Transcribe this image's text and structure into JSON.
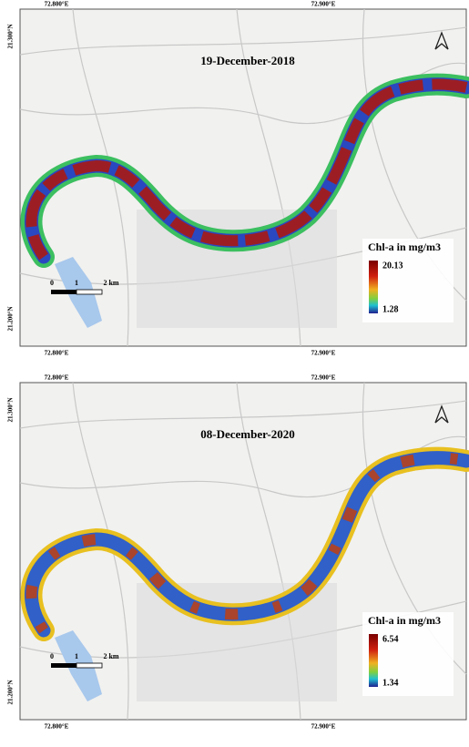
{
  "panels": [
    {
      "title": "19-December-2018",
      "top_axis_labels": [
        "72.800°E",
        "72.900°E"
      ],
      "bottom_axis_labels": [
        "72.800°E",
        "72.900°E"
      ],
      "left_axis_labels": [
        "21.300°N",
        "21.200°N"
      ],
      "legend": {
        "title": "Chl-a in mg/m3",
        "max": 20.13,
        "min": 1.28
      },
      "scale_bar": [
        "0",
        "1",
        "2 km"
      ]
    },
    {
      "title": "08-December-2020",
      "top_axis_labels": [
        "72.800°E",
        "72.900°E"
      ],
      "bottom_axis_labels": [
        "72.800°E",
        "72.900°E"
      ],
      "left_axis_labels": [
        "21.300°N",
        "21.200°N"
      ],
      "legend": {
        "title": "Chl-a in mg/m3",
        "max": 6.54,
        "min": 1.34
      },
      "scale_bar": [
        "0",
        "1",
        "2 km"
      ]
    }
  ]
}
